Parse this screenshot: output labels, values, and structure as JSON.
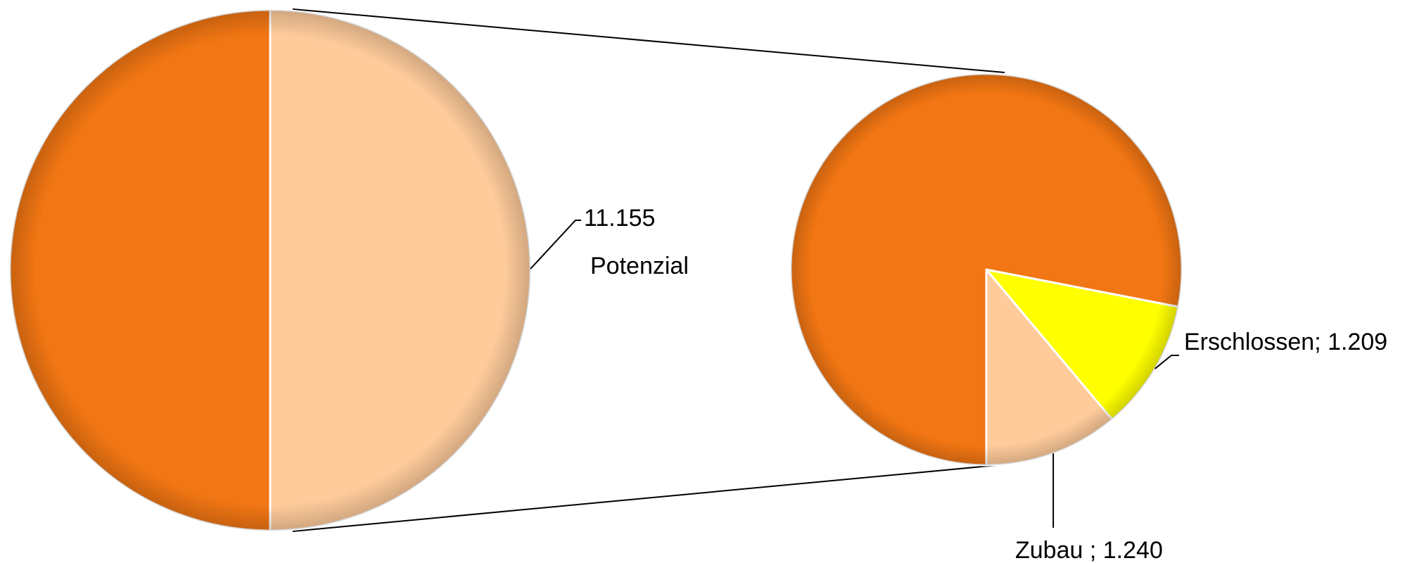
{
  "chart_data": {
    "type": "pie",
    "variant": "pie-of-pie",
    "main_pie": {
      "slices": [
        {
          "label": "",
          "value": 11155,
          "color": "#F27613"
        },
        {
          "label": "Potenzial",
          "value": 11155,
          "value_label": "11.155",
          "color": "#FFCB9B",
          "exploded_to_secondary": true
        }
      ]
    },
    "secondary_pie": {
      "slices": [
        {
          "label": "",
          "value": 8706,
          "color": "#F27613"
        },
        {
          "label": "Erschlossen",
          "value": 1209,
          "value_label": "1.209",
          "color": "#FFFF00"
        },
        {
          "label": "Zubau ",
          "value": 1240,
          "value_label": "1.240",
          "color": "#FFCB9B"
        }
      ]
    },
    "label_separator": "; ",
    "legend": false
  }
}
